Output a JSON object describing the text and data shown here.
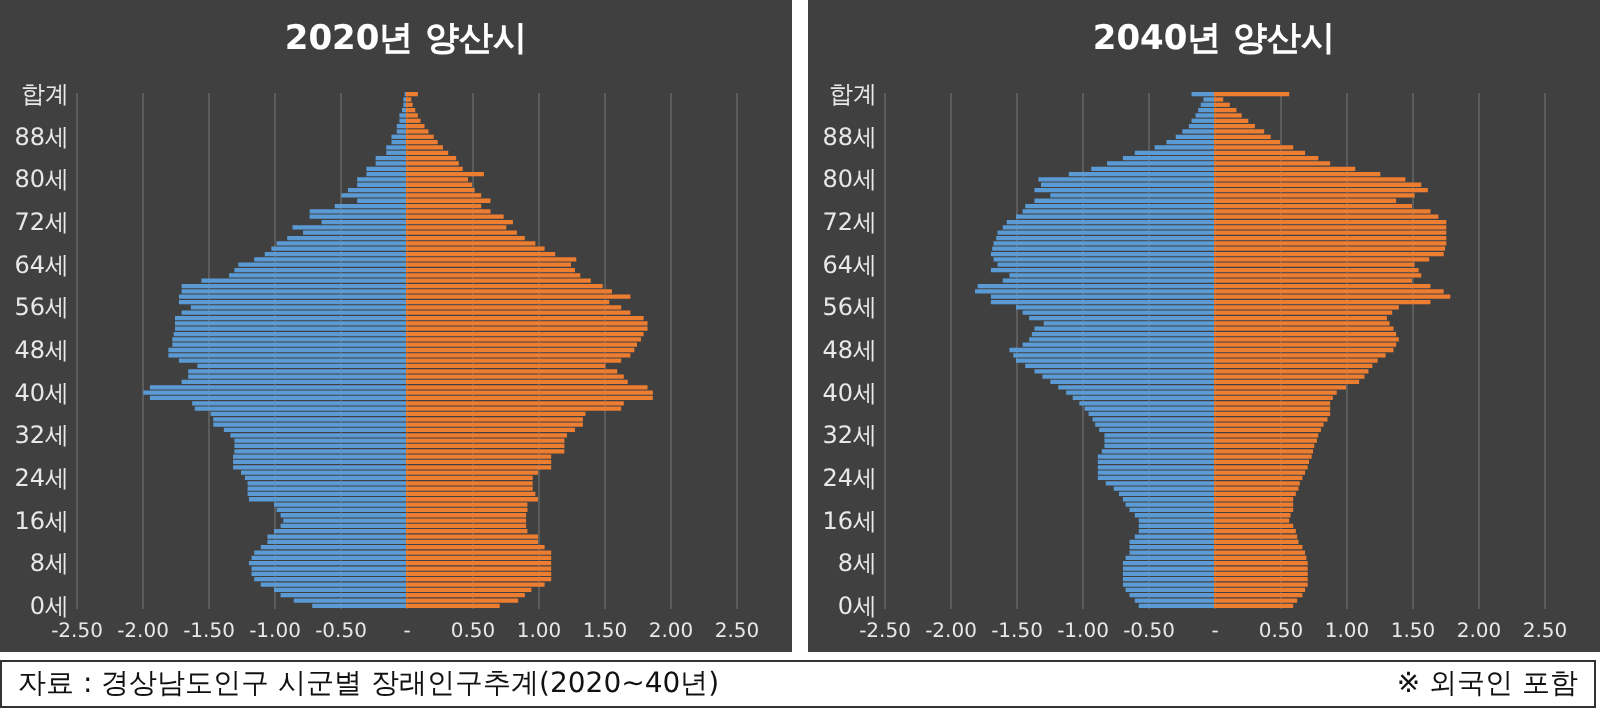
{
  "chart_data": [
    {
      "type": "bar",
      "orientation": "horizontal",
      "stacked": true,
      "title": "2020년 양산시",
      "grid": "x",
      "categories": [
        "합계",
        null,
        null,
        null,
        null,
        null,
        null,
        null,
        "88세",
        null,
        null,
        null,
        null,
        null,
        null,
        null,
        "80세",
        null,
        null,
        null,
        null,
        null,
        null,
        null,
        "72세",
        null,
        null,
        null,
        null,
        null,
        null,
        null,
        "64세",
        null,
        null,
        null,
        null,
        null,
        null,
        null,
        "56세",
        null,
        null,
        null,
        null,
        null,
        null,
        null,
        "48세",
        null,
        null,
        null,
        null,
        null,
        null,
        null,
        "40세",
        null,
        null,
        null,
        null,
        null,
        null,
        null,
        "32세",
        null,
        null,
        null,
        null,
        null,
        null,
        null,
        "24세",
        null,
        null,
        null,
        null,
        null,
        null,
        null,
        "16세",
        null,
        null,
        null,
        null,
        null,
        null,
        null,
        "8세",
        null,
        null,
        null,
        null,
        null,
        null,
        null,
        "0세"
      ],
      "xlim": [
        -2.5,
        2.5
      ],
      "xticks": [
        {
          "value": -2.5,
          "label": "-2.50"
        },
        {
          "value": -2,
          "label": "-2.00"
        },
        {
          "value": -1.5,
          "label": "-1.50"
        },
        {
          "value": -1,
          "label": "-1.00"
        },
        {
          "value": -0.5,
          "label": "-0.50"
        },
        {
          "value": 0,
          "label": "-"
        },
        {
          "value": 0.5,
          "label": "0.50"
        },
        {
          "value": 1,
          "label": "1.00"
        },
        {
          "value": 1.5,
          "label": "1.50"
        },
        {
          "value": 2,
          "label": "2.00"
        },
        {
          "value": 2.5,
          "label": "2.50"
        }
      ],
      "series": [
        {
          "color": "#5b9bd5",
          "values": [
            -0.01,
            -0.02,
            -0.02,
            -0.03,
            -0.05,
            -0.05,
            -0.07,
            -0.07,
            -0.11,
            -0.11,
            -0.15,
            -0.15,
            -0.23,
            -0.23,
            -0.3,
            -0.3,
            -0.37,
            -0.37,
            -0.44,
            -0.49,
            -0.37,
            -0.54,
            -0.73,
            -0.73,
            -0.64,
            -0.86,
            -0.78,
            -0.9,
            -0.98,
            -1.02,
            -1.07,
            -1.15,
            -1.27,
            -1.3,
            -1.34,
            -1.55,
            -1.7,
            -1.7,
            -1.72,
            -1.72,
            -1.63,
            -1.7,
            -1.75,
            -1.75,
            -1.75,
            -1.76,
            -1.77,
            -1.77,
            -1.8,
            -1.8,
            -1.72,
            -1.58,
            -1.65,
            -1.65,
            -1.7,
            -1.94,
            -1.99,
            -1.94,
            -1.62,
            -1.6,
            -1.48,
            -1.46,
            -1.46,
            -1.38,
            -1.33,
            -1.3,
            -1.3,
            -1.3,
            -1.31,
            -1.31,
            -1.31,
            -1.25,
            -1.22,
            -1.2,
            -1.2,
            -1.2,
            -1.19,
            -1.0,
            -0.98,
            -0.95,
            -0.93,
            -0.95,
            -1.0,
            -1.05,
            -1.05,
            -1.1,
            -1.15,
            -1.17,
            -1.19,
            -1.17,
            -1.17,
            -1.15,
            -1.1,
            -1.0,
            -0.95,
            -0.85,
            -0.71
          ]
        },
        {
          "color": "#ed7d31",
          "values": [
            0.09,
            0.04,
            0.05,
            0.07,
            0.09,
            0.11,
            0.14,
            0.17,
            0.21,
            0.24,
            0.28,
            0.32,
            0.38,
            0.4,
            0.43,
            0.59,
            0.47,
            0.5,
            0.52,
            0.57,
            0.64,
            0.57,
            0.64,
            0.74,
            0.81,
            0.76,
            0.84,
            0.9,
            0.98,
            1.05,
            1.13,
            1.29,
            1.25,
            1.28,
            1.32,
            1.4,
            1.49,
            1.56,
            1.7,
            1.54,
            1.63,
            1.7,
            1.8,
            1.83,
            1.83,
            1.8,
            1.78,
            1.75,
            1.73,
            1.7,
            1.63,
            1.51,
            1.6,
            1.65,
            1.68,
            1.83,
            1.87,
            1.87,
            1.65,
            1.63,
            1.36,
            1.34,
            1.34,
            1.28,
            1.22,
            1.2,
            1.2,
            1.2,
            1.1,
            1.1,
            1.1,
            1.0,
            0.96,
            0.96,
            0.96,
            0.98,
            1.0,
            0.92,
            0.92,
            0.91,
            0.91,
            0.91,
            0.92,
            1.0,
            1.0,
            1.05,
            1.1,
            1.1,
            1.1,
            1.1,
            1.1,
            1.1,
            1.05,
            0.95,
            0.9,
            0.85,
            0.71
          ]
        }
      ],
      "annotations": [
        "자료 : 경상남도인구 시군별 장래인구추계(2020~40년)",
        "※ 외국인 포함"
      ]
    },
    {
      "type": "bar",
      "orientation": "horizontal",
      "stacked": true,
      "title": "2040년 양산시",
      "grid": "x",
      "categories": [
        "합계",
        null,
        null,
        null,
        null,
        null,
        null,
        null,
        "88세",
        null,
        null,
        null,
        null,
        null,
        null,
        null,
        "80세",
        null,
        null,
        null,
        null,
        null,
        null,
        null,
        "72세",
        null,
        null,
        null,
        null,
        null,
        null,
        null,
        "64세",
        null,
        null,
        null,
        null,
        null,
        null,
        null,
        "56세",
        null,
        null,
        null,
        null,
        null,
        null,
        null,
        "48세",
        null,
        null,
        null,
        null,
        null,
        null,
        null,
        "40세",
        null,
        null,
        null,
        null,
        null,
        null,
        null,
        "32세",
        null,
        null,
        null,
        null,
        null,
        null,
        null,
        "24세",
        null,
        null,
        null,
        null,
        null,
        null,
        null,
        "16세",
        null,
        null,
        null,
        null,
        null,
        null,
        null,
        "8세",
        null,
        null,
        null,
        null,
        null,
        null,
        null,
        "0세"
      ],
      "xlim": [
        -2.5,
        2.5
      ],
      "xticks": [
        {
          "value": -2.5,
          "label": "-2.50"
        },
        {
          "value": -2,
          "label": "-2.00"
        },
        {
          "value": -1.5,
          "label": "-1.50"
        },
        {
          "value": -1,
          "label": "-1.00"
        },
        {
          "value": -0.5,
          "label": "-0.50"
        },
        {
          "value": 0,
          "label": "-"
        },
        {
          "value": 0.5,
          "label": "0.50"
        },
        {
          "value": 1,
          "label": "1.00"
        },
        {
          "value": 1.5,
          "label": "1.50"
        },
        {
          "value": 2,
          "label": "2.00"
        },
        {
          "value": 2.5,
          "label": "2.50"
        }
      ],
      "series": [
        {
          "color": "#5b9bd5",
          "values": [
            -0.17,
            -0.08,
            -0.1,
            -0.12,
            -0.14,
            -0.17,
            -0.19,
            -0.24,
            -0.29,
            -0.36,
            -0.45,
            -0.6,
            -0.69,
            -0.81,
            -0.93,
            -1.1,
            -1.33,
            -1.31,
            -1.36,
            -1.24,
            -1.36,
            -1.43,
            -1.45,
            -1.5,
            -1.57,
            -1.6,
            -1.64,
            -1.65,
            -1.67,
            -1.68,
            -1.69,
            -1.67,
            -1.64,
            -1.69,
            -1.55,
            -1.6,
            -1.79,
            -1.81,
            -1.69,
            -1.69,
            -1.5,
            -1.45,
            -1.4,
            -1.29,
            -1.36,
            -1.38,
            -1.4,
            -1.45,
            -1.55,
            -1.52,
            -1.5,
            -1.43,
            -1.36,
            -1.3,
            -1.24,
            -1.18,
            -1.12,
            -1.07,
            -1.02,
            -0.98,
            -0.95,
            -0.92,
            -0.9,
            -0.87,
            -0.83,
            -0.83,
            -0.83,
            -0.85,
            -0.88,
            -0.88,
            -0.88,
            -0.88,
            -0.88,
            -0.82,
            -0.76,
            -0.72,
            -0.69,
            -0.67,
            -0.64,
            -0.6,
            -0.57,
            -0.57,
            -0.57,
            -0.6,
            -0.64,
            -0.64,
            -0.64,
            -0.67,
            -0.69,
            -0.69,
            -0.69,
            -0.69,
            -0.69,
            -0.67,
            -0.64,
            -0.6,
            -0.57
          ]
        },
        {
          "color": "#ed7d31",
          "values": [
            0.57,
            0.07,
            0.12,
            0.17,
            0.21,
            0.26,
            0.31,
            0.38,
            0.43,
            0.5,
            0.6,
            0.69,
            0.79,
            0.88,
            1.07,
            1.26,
            1.45,
            1.57,
            1.62,
            1.52,
            1.38,
            1.5,
            1.64,
            1.7,
            1.76,
            1.76,
            1.76,
            1.76,
            1.76,
            1.75,
            1.74,
            1.63,
            1.52,
            1.55,
            1.57,
            1.5,
            1.64,
            1.74,
            1.79,
            1.64,
            1.4,
            1.35,
            1.31,
            1.33,
            1.36,
            1.38,
            1.4,
            1.38,
            1.36,
            1.3,
            1.24,
            1.2,
            1.17,
            1.14,
            1.1,
            1.0,
            0.93,
            0.9,
            0.88,
            0.88,
            0.88,
            0.86,
            0.83,
            0.81,
            0.79,
            0.78,
            0.76,
            0.75,
            0.74,
            0.72,
            0.71,
            0.69,
            0.67,
            0.65,
            0.64,
            0.62,
            0.6,
            0.6,
            0.6,
            0.58,
            0.57,
            0.6,
            0.62,
            0.63,
            0.64,
            0.67,
            0.69,
            0.7,
            0.71,
            0.71,
            0.71,
            0.71,
            0.71,
            0.69,
            0.67,
            0.63,
            0.6
          ]
        }
      ]
    }
  ]
}
